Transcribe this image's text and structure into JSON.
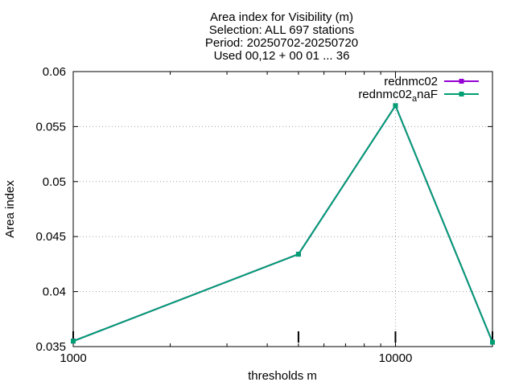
{
  "chart_data": {
    "type": "line",
    "title_lines": [
      "Area index  for Visibility (m)",
      "Selection: ALL    697 stations",
      "Period: 20250702-20250720",
      "Used 00,12 + 00 01 ... 36"
    ],
    "xlabel": "thresholds m",
    "ylabel": "Area index",
    "xscale": "log",
    "xlim": [
      1000,
      20000
    ],
    "ylim": [
      0.035,
      0.06
    ],
    "x_ticks": [
      1000,
      10000
    ],
    "x_tick_labels": [
      "1000",
      "10000"
    ],
    "y_ticks": [
      0.035,
      0.04,
      0.045,
      0.05,
      0.055,
      0.06
    ],
    "y_tick_labels": [
      "0.035",
      "0.04",
      "0.045",
      "0.05",
      "0.055",
      "0.06"
    ],
    "grid": true,
    "legend_position": "top-right",
    "series": [
      {
        "name": "rednmc02",
        "color": "#9400d3",
        "x": [
          1000,
          5000,
          10000,
          20000
        ],
        "values": [
          0.0355,
          0.0434,
          0.0569,
          0.0354
        ]
      },
      {
        "name": "rednmc02_anaF",
        "name_base": "rednmc02",
        "name_sub": "a",
        "name_tail": "naF",
        "color": "#009e73",
        "x": [
          1000,
          5000,
          10000,
          20000
        ],
        "values": [
          0.0355,
          0.0434,
          0.0569,
          0.0354
        ]
      }
    ]
  }
}
